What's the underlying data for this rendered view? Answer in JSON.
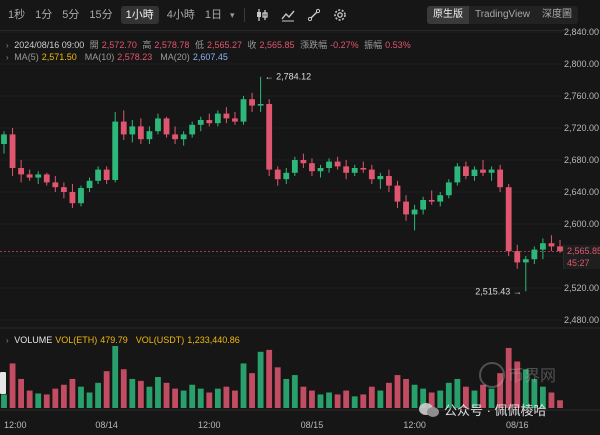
{
  "toolbar": {
    "intervals": [
      "1秒",
      "1分",
      "5分",
      "15分",
      "1小時",
      "4小時",
      "1日"
    ],
    "active_interval": "1小時",
    "view_tabs": [
      "原生版",
      "TradingView",
      "深度圖"
    ],
    "active_view": "原生版",
    "icons": [
      "indicator-icon",
      "line-chart-icon",
      "drawing-tools-icon",
      "settings-icon"
    ]
  },
  "ohlc": {
    "date": "2024/08/16 09:00",
    "open_label": "開",
    "open": "2,572.70",
    "high_label": "高",
    "high": "2,578.78",
    "low_label": "低",
    "low": "2,565.27",
    "close_label": "收",
    "close": "2,565.85",
    "change_label": "漲跌幅",
    "change": "-0.27%",
    "amp_label": "振幅",
    "amp": "0.53%"
  },
  "ma": [
    {
      "label": "MA(5)",
      "value": "2,571.50",
      "color": "#f0b90b"
    },
    {
      "label": "MA(10)",
      "value": "2,578.23",
      "color": "#e0566f"
    },
    {
      "label": "MA(20)",
      "value": "2,607.45",
      "color": "#8ab4f8"
    }
  ],
  "volume_legend": [
    {
      "label": "VOLUME",
      "value": "",
      "color": "#e6e6e6"
    },
    {
      "label": "VOL(ETH)",
      "value": "479.79",
      "color": "#f0b90b"
    },
    {
      "label": "VOL(USDT)",
      "value": "1,233,440.86",
      "color": "#f0b90b"
    }
  ],
  "colors": {
    "up": "#2db77b",
    "down": "#e0566f",
    "bg": "#161616",
    "grid": "#262626"
  },
  "chart_data": {
    "type": "candlestick",
    "y_ticks": [
      "2,840.00",
      "2,800.00",
      "2,760.00",
      "2,720.00",
      "2,680.00",
      "2,640.00",
      "2,600.00",
      "2,560.00",
      "2,520.00",
      "2,480.00"
    ],
    "ylim": [
      2470,
      2845
    ],
    "x_ticks": [
      {
        "label": "12:00",
        "index": 0
      },
      {
        "label": "08/14",
        "index": 12
      },
      {
        "label": "12:00",
        "index": 24
      },
      {
        "label": "08/15",
        "index": 36
      },
      {
        "label": "12:00",
        "index": 48
      },
      {
        "label": "08/16",
        "index": 60
      },
      {
        "label": "12:00",
        "index": 72
      }
    ],
    "current_price": {
      "value": 2565.85,
      "label": "2,565.85",
      "countdown": "45:27"
    },
    "annotations": [
      {
        "label": "2,784.12",
        "candle": 30,
        "value": 2784.12
      },
      {
        "label": "2,515.43",
        "candle": 61,
        "value": 2515.43
      }
    ],
    "candles": [
      {
        "o": 2700,
        "h": 2716,
        "l": 2688,
        "c": 2712,
        "v": 14
      },
      {
        "o": 2712,
        "h": 2720,
        "l": 2660,
        "c": 2670,
        "v": 46
      },
      {
        "o": 2670,
        "h": 2680,
        "l": 2652,
        "c": 2662,
        "v": 30
      },
      {
        "o": 2662,
        "h": 2668,
        "l": 2654,
        "c": 2658,
        "v": 18
      },
      {
        "o": 2658,
        "h": 2666,
        "l": 2650,
        "c": 2662,
        "v": 15
      },
      {
        "o": 2662,
        "h": 2664,
        "l": 2648,
        "c": 2652,
        "v": 14
      },
      {
        "o": 2652,
        "h": 2660,
        "l": 2640,
        "c": 2646,
        "v": 20
      },
      {
        "o": 2646,
        "h": 2652,
        "l": 2632,
        "c": 2640,
        "v": 24
      },
      {
        "o": 2640,
        "h": 2650,
        "l": 2620,
        "c": 2626,
        "v": 30
      },
      {
        "o": 2626,
        "h": 2648,
        "l": 2622,
        "c": 2645,
        "v": 22
      },
      {
        "o": 2645,
        "h": 2658,
        "l": 2640,
        "c": 2654,
        "v": 16
      },
      {
        "o": 2654,
        "h": 2672,
        "l": 2650,
        "c": 2668,
        "v": 26
      },
      {
        "o": 2668,
        "h": 2672,
        "l": 2650,
        "c": 2655,
        "v": 38
      },
      {
        "o": 2655,
        "h": 2740,
        "l": 2652,
        "c": 2728,
        "v": 64
      },
      {
        "o": 2728,
        "h": 2742,
        "l": 2705,
        "c": 2712,
        "v": 40
      },
      {
        "o": 2712,
        "h": 2730,
        "l": 2702,
        "c": 2722,
        "v": 30
      },
      {
        "o": 2722,
        "h": 2732,
        "l": 2700,
        "c": 2706,
        "v": 28
      },
      {
        "o": 2706,
        "h": 2722,
        "l": 2700,
        "c": 2716,
        "v": 22
      },
      {
        "o": 2716,
        "h": 2738,
        "l": 2712,
        "c": 2732,
        "v": 32
      },
      {
        "o": 2732,
        "h": 2734,
        "l": 2708,
        "c": 2712,
        "v": 26
      },
      {
        "o": 2712,
        "h": 2722,
        "l": 2700,
        "c": 2706,
        "v": 20
      },
      {
        "o": 2706,
        "h": 2716,
        "l": 2698,
        "c": 2712,
        "v": 18
      },
      {
        "o": 2712,
        "h": 2728,
        "l": 2708,
        "c": 2724,
        "v": 24
      },
      {
        "o": 2724,
        "h": 2734,
        "l": 2716,
        "c": 2730,
        "v": 20
      },
      {
        "o": 2730,
        "h": 2738,
        "l": 2722,
        "c": 2726,
        "v": 16
      },
      {
        "o": 2726,
        "h": 2742,
        "l": 2722,
        "c": 2738,
        "v": 20
      },
      {
        "o": 2738,
        "h": 2746,
        "l": 2726,
        "c": 2732,
        "v": 22
      },
      {
        "o": 2732,
        "h": 2740,
        "l": 2724,
        "c": 2728,
        "v": 18
      },
      {
        "o": 2728,
        "h": 2760,
        "l": 2724,
        "c": 2756,
        "v": 46
      },
      {
        "o": 2756,
        "h": 2764,
        "l": 2740,
        "c": 2748,
        "v": 36
      },
      {
        "o": 2748,
        "h": 2784,
        "l": 2740,
        "c": 2750,
        "v": 58
      },
      {
        "o": 2750,
        "h": 2756,
        "l": 2660,
        "c": 2668,
        "v": 60
      },
      {
        "o": 2668,
        "h": 2672,
        "l": 2648,
        "c": 2656,
        "v": 42
      },
      {
        "o": 2656,
        "h": 2670,
        "l": 2650,
        "c": 2664,
        "v": 30
      },
      {
        "o": 2664,
        "h": 2684,
        "l": 2660,
        "c": 2680,
        "v": 34
      },
      {
        "o": 2680,
        "h": 2688,
        "l": 2670,
        "c": 2676,
        "v": 22
      },
      {
        "o": 2676,
        "h": 2682,
        "l": 2660,
        "c": 2666,
        "v": 18
      },
      {
        "o": 2666,
        "h": 2674,
        "l": 2658,
        "c": 2670,
        "v": 14
      },
      {
        "o": 2670,
        "h": 2682,
        "l": 2664,
        "c": 2678,
        "v": 16
      },
      {
        "o": 2678,
        "h": 2684,
        "l": 2668,
        "c": 2672,
        "v": 14
      },
      {
        "o": 2672,
        "h": 2680,
        "l": 2656,
        "c": 2664,
        "v": 18
      },
      {
        "o": 2664,
        "h": 2674,
        "l": 2660,
        "c": 2670,
        "v": 12
      },
      {
        "o": 2670,
        "h": 2678,
        "l": 2664,
        "c": 2668,
        "v": 14
      },
      {
        "o": 2668,
        "h": 2674,
        "l": 2650,
        "c": 2656,
        "v": 22
      },
      {
        "o": 2656,
        "h": 2664,
        "l": 2644,
        "c": 2660,
        "v": 18
      },
      {
        "o": 2660,
        "h": 2668,
        "l": 2640,
        "c": 2648,
        "v": 26
      },
      {
        "o": 2648,
        "h": 2654,
        "l": 2620,
        "c": 2628,
        "v": 34
      },
      {
        "o": 2628,
        "h": 2636,
        "l": 2604,
        "c": 2612,
        "v": 30
      },
      {
        "o": 2612,
        "h": 2624,
        "l": 2592,
        "c": 2618,
        "v": 24
      },
      {
        "o": 2618,
        "h": 2634,
        "l": 2612,
        "c": 2630,
        "v": 20
      },
      {
        "o": 2630,
        "h": 2642,
        "l": 2624,
        "c": 2628,
        "v": 16
      },
      {
        "o": 2628,
        "h": 2640,
        "l": 2622,
        "c": 2636,
        "v": 18
      },
      {
        "o": 2636,
        "h": 2656,
        "l": 2632,
        "c": 2652,
        "v": 26
      },
      {
        "o": 2652,
        "h": 2676,
        "l": 2648,
        "c": 2672,
        "v": 30
      },
      {
        "o": 2672,
        "h": 2678,
        "l": 2656,
        "c": 2660,
        "v": 22
      },
      {
        "o": 2660,
        "h": 2672,
        "l": 2654,
        "c": 2668,
        "v": 18
      },
      {
        "o": 2668,
        "h": 2680,
        "l": 2660,
        "c": 2664,
        "v": 24
      },
      {
        "o": 2664,
        "h": 2672,
        "l": 2654,
        "c": 2668,
        "v": 20
      },
      {
        "o": 2668,
        "h": 2674,
        "l": 2640,
        "c": 2646,
        "v": 36
      },
      {
        "o": 2646,
        "h": 2650,
        "l": 2560,
        "c": 2566,
        "v": 62
      },
      {
        "o": 2566,
        "h": 2574,
        "l": 2544,
        "c": 2552,
        "v": 48
      },
      {
        "o": 2552,
        "h": 2560,
        "l": 2516,
        "c": 2556,
        "v": 40
      },
      {
        "o": 2556,
        "h": 2572,
        "l": 2550,
        "c": 2568,
        "v": 30
      },
      {
        "o": 2568,
        "h": 2582,
        "l": 2556,
        "c": 2576,
        "v": 22
      },
      {
        "o": 2576,
        "h": 2586,
        "l": 2566,
        "c": 2572,
        "v": 16
      },
      {
        "o": 2572,
        "h": 2580,
        "l": 2564,
        "c": 2566,
        "v": 8
      }
    ]
  }
}
